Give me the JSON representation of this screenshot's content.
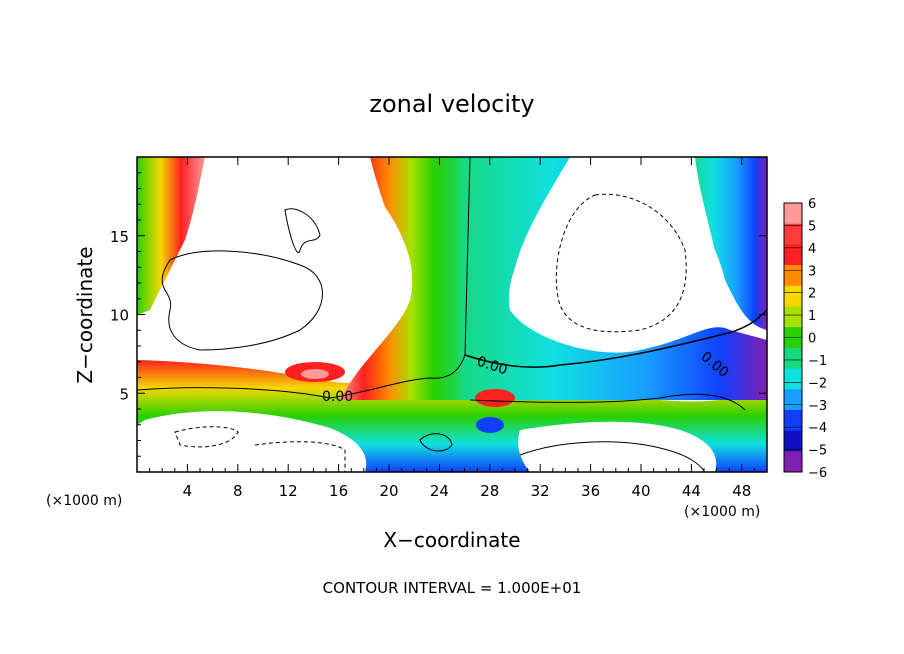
{
  "chart_data": {
    "type": "heatmap",
    "title": "zonal velocity",
    "xlabel": "X−coordinate",
    "ylabel": "Z−coordinate",
    "x_unit_left": "(×1000 m)",
    "x_unit_right": "(×1000 m)",
    "footer": "CONTOUR INTERVAL = 1.000E+01",
    "xlim": [
      0,
      50
    ],
    "ylim": [
      0,
      20
    ],
    "x_ticks": [
      4,
      8,
      12,
      16,
      20,
      24,
      28,
      32,
      36,
      40,
      44,
      48
    ],
    "y_ticks": [
      5,
      10,
      15
    ],
    "contour_labels": [
      "0.00",
      "0.00",
      "0.00"
    ],
    "colorbar": {
      "levels": [
        6,
        5,
        4,
        3,
        2,
        1,
        0,
        -1,
        -2,
        -3,
        -4,
        -5,
        -6
      ],
      "colors": [
        "#ff9a9a",
        "#ff3b3b",
        "#ff2020",
        "#ff8c00",
        "#f5d800",
        "#a8e000",
        "#28d000",
        "#18d880",
        "#10e0e0",
        "#18a0ff",
        "#1040ff",
        "#1010c0",
        "#8020b0"
      ]
    }
  }
}
